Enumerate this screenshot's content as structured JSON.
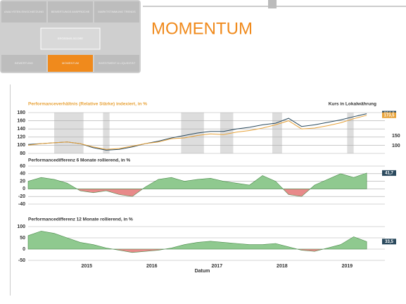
{
  "header": {
    "title": "MOMENTUM",
    "tiles": [
      "ANALYSTEN EINSCHÄTZUNG",
      "BEWERTUNGS ANSPRÜCHE",
      "MARKTSTIMMUNG TRENDS",
      "ERGEBNIS-SCORE",
      "BEWERTUNG",
      "MOMENTUM",
      "INVESTMENT & LIQUIDITÄT"
    ]
  },
  "chart_data": [
    {
      "type": "line",
      "title": "Performanceverhältnis (Relative Stärke) indexiert, in %",
      "right_title": "Kurs in Lokalwährung",
      "x": [
        2014.6,
        2014.8,
        2015.0,
        2015.2,
        2015.4,
        2015.6,
        2015.8,
        2016.0,
        2016.2,
        2016.4,
        2016.6,
        2016.8,
        2017.0,
        2017.2,
        2017.4,
        2017.6,
        2017.8,
        2018.0,
        2018.2,
        2018.4,
        2018.6,
        2018.8,
        2019.0,
        2019.2,
        2019.4,
        2019.6,
        2019.8
      ],
      "xlim": [
        2014.6,
        2019.95
      ],
      "ylim": [
        80,
        180
      ],
      "yticks": [
        80,
        100,
        120,
        140,
        160,
        180
      ],
      "y2lim": [
        60,
        270
      ],
      "y2ticks": [
        100,
        150
      ],
      "shaded": [
        [
          2015.0,
          2015.45
        ],
        [
          2015.75,
          2015.85
        ],
        [
          2016.95,
          2017.3
        ],
        [
          2017.55,
          2017.75
        ],
        [
          2018.35,
          2018.5
        ],
        [
          2019.5,
          2019.6
        ]
      ],
      "series": [
        {
          "name": "Kurs in Lokalwährung",
          "color": "#2b4a5e",
          "axis": "y2",
          "last_label": "264,3",
          "values": [
            106.2,
            110.4,
            114.6,
            118.8,
            110.4,
            89.4,
            76.8,
            81,
            93.6,
            110.4,
            123,
            139.8,
            152.4,
            165,
            173.4,
            173.4,
            186,
            194.4,
            207,
            215.4,
            240.6,
            198.6,
            207,
            219.6,
            232.2,
            249,
            264.3
          ]
        },
        {
          "name": "Performanceverhältnis",
          "color": "#e8a33a",
          "last_label": "173,5",
          "values": [
            100,
            104,
            106,
            108,
            104,
            96,
            90,
            92,
            98,
            104,
            108,
            116,
            118,
            124,
            128,
            126,
            132,
            136,
            142,
            150,
            160,
            140,
            142,
            148,
            155,
            165,
            173.5
          ]
        }
      ]
    },
    {
      "type": "area",
      "title": "Performancedifferenz 6 Monate rollierend, in %",
      "x": [
        2014.6,
        2014.8,
        2015.0,
        2015.2,
        2015.4,
        2015.6,
        2015.8,
        2016.0,
        2016.2,
        2016.4,
        2016.6,
        2016.8,
        2017.0,
        2017.2,
        2017.4,
        2017.6,
        2017.8,
        2018.0,
        2018.2,
        2018.4,
        2018.6,
        2018.8,
        2019.0,
        2019.2,
        2019.4,
        2019.6,
        2019.8
      ],
      "xlim": [
        2014.6,
        2019.95
      ],
      "ylim": [
        -40,
        60
      ],
      "yticks": [
        -40,
        -20,
        0,
        20,
        40,
        60
      ],
      "series": [
        {
          "name": "6 Monate",
          "color": "#8fc98f",
          "negative_color": "#e88a8a",
          "last_label": "41,7",
          "values": [
            20,
            30,
            25,
            15,
            -5,
            -10,
            -5,
            -15,
            -20,
            5,
            25,
            30,
            20,
            25,
            28,
            20,
            15,
            10,
            35,
            20,
            -15,
            -20,
            10,
            25,
            40,
            30,
            41.7
          ]
        }
      ]
    },
    {
      "type": "area",
      "title": "Performancedifferenz 12 Monate rollierend, in %",
      "xlabel": "Datum",
      "x": [
        2014.6,
        2014.8,
        2015.0,
        2015.2,
        2015.4,
        2015.6,
        2015.8,
        2016.0,
        2016.2,
        2016.4,
        2016.6,
        2016.8,
        2017.0,
        2017.2,
        2017.4,
        2017.6,
        2017.8,
        2018.0,
        2018.2,
        2018.4,
        2018.6,
        2018.8,
        2019.0,
        2019.2,
        2019.4,
        2019.6,
        2019.8
      ],
      "xlim": [
        2014.6,
        2019.95
      ],
      "ylim": [
        -50,
        100
      ],
      "yticks": [
        -50,
        0,
        50,
        100
      ],
      "xticks": [
        {
          "value": 2015.5,
          "label": "2015"
        },
        {
          "value": 2016.5,
          "label": "2016"
        },
        {
          "value": 2017.5,
          "label": "2017"
        },
        {
          "value": 2018.5,
          "label": "2018"
        },
        {
          "value": 2019.5,
          "label": "2019"
        }
      ],
      "series": [
        {
          "name": "12 Monate",
          "color": "#8fc98f",
          "negative_color": "#e88a8a",
          "last_label": "33,5",
          "values": [
            60,
            80,
            70,
            50,
            30,
            20,
            5,
            -5,
            -15,
            -10,
            -5,
            5,
            20,
            30,
            35,
            30,
            25,
            20,
            20,
            25,
            10,
            -5,
            -10,
            5,
            20,
            55,
            33.5
          ]
        }
      ]
    }
  ]
}
